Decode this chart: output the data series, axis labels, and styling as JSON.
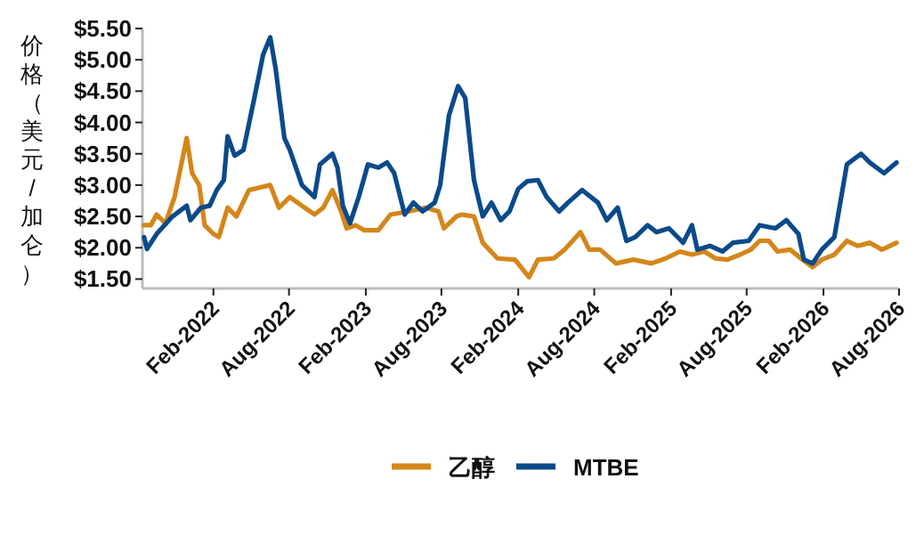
{
  "chart_data": {
    "type": "line",
    "ylabel": "价格（美元/加仑）",
    "legend": "bottom",
    "xlim": [
      "2021-08-15",
      "2026-08-01"
    ],
    "xticks": [
      {
        "value": "2022-02-01",
        "label": "Feb-2022"
      },
      {
        "value": "2022-08-01",
        "label": "Aug-2022"
      },
      {
        "value": "2023-02-01",
        "label": "Feb-2023"
      },
      {
        "value": "2023-08-01",
        "label": "Aug-2023"
      },
      {
        "value": "2024-02-01",
        "label": "Feb-2024"
      },
      {
        "value": "2024-08-01",
        "label": "Aug-2024"
      },
      {
        "value": "2025-02-01",
        "label": "Feb-2025"
      },
      {
        "value": "2025-08-01",
        "label": "Aug-2025"
      },
      {
        "value": "2026-02-01",
        "label": "Feb-2026"
      },
      {
        "value": "2026-08-01",
        "label": "Aug-2026"
      }
    ],
    "ylim": [
      1.35,
      5.5
    ],
    "yticks": [
      {
        "value": 1.5,
        "label": "$1.50"
      },
      {
        "value": 2,
        "label": "$2.00"
      },
      {
        "value": 2.5,
        "label": "$2.50"
      },
      {
        "value": 3,
        "label": "$3.00"
      },
      {
        "value": 3.5,
        "label": "$3.50"
      },
      {
        "value": 4,
        "label": "$4.00"
      },
      {
        "value": 4.5,
        "label": "$4.50"
      },
      {
        "value": 5,
        "label": "$5.00"
      },
      {
        "value": 5.5,
        "label": "$5.50"
      }
    ],
    "series": [
      {
        "name": "乙醇",
        "color": "#d4861a",
        "x": [
          "2021-08-19",
          "2021-09-04",
          "2021-09-18",
          "2021-10-09",
          "2021-10-31",
          "2021-11-17",
          "2021-11-29",
          "2021-12-12",
          "2021-12-29",
          "2022-01-11",
          "2022-02-01",
          "2022-02-14",
          "2022-03-07",
          "2022-03-28",
          "2022-04-27",
          "2022-06-17",
          "2022-07-08",
          "2022-08-03",
          "2022-09-01",
          "2022-10-01",
          "2022-10-22",
          "2022-11-13",
          "2022-12-04",
          "2022-12-17",
          "2023-01-07",
          "2023-01-28",
          "2023-03-03",
          "2023-04-01",
          "2023-05-14",
          "2023-06-25",
          "2023-07-25",
          "2023-08-07",
          "2023-09-06",
          "2023-09-19",
          "2023-10-18",
          "2023-11-08",
          "2023-12-13",
          "2024-01-24",
          "2024-02-27",
          "2024-03-19",
          "2024-04-26",
          "2024-05-22",
          "2024-06-29",
          "2024-07-20",
          "2024-08-15",
          "2024-09-22",
          "2024-11-03",
          "2024-12-16",
          "2025-01-19",
          "2025-02-22",
          "2025-03-23",
          "2025-04-22",
          "2025-05-18",
          "2025-06-16",
          "2025-07-16",
          "2025-08-11",
          "2025-09-01",
          "2025-09-23",
          "2025-10-14",
          "2025-11-13",
          "2025-12-13",
          "2026-01-06",
          "2026-01-28",
          "2026-02-27",
          "2026-03-29",
          "2026-04-24",
          "2026-05-23",
          "2026-06-21",
          "2026-07-26"
        ],
        "values": [
          2.36,
          2.36,
          2.53,
          2.39,
          2.81,
          3.36,
          3.75,
          3.19,
          3.0,
          2.36,
          2.22,
          2.17,
          2.64,
          2.5,
          2.92,
          3.0,
          2.64,
          2.81,
          2.67,
          2.53,
          2.64,
          2.92,
          2.58,
          2.31,
          2.36,
          2.28,
          2.28,
          2.53,
          2.58,
          2.64,
          2.58,
          2.31,
          2.5,
          2.53,
          2.5,
          2.08,
          1.83,
          1.81,
          1.53,
          1.81,
          1.83,
          1.97,
          2.25,
          1.97,
          1.97,
          1.75,
          1.81,
          1.75,
          1.83,
          1.94,
          1.89,
          1.94,
          1.83,
          1.81,
          1.89,
          1.97,
          2.11,
          2.11,
          1.94,
          1.97,
          1.81,
          1.69,
          1.81,
          1.89,
          2.11,
          2.03,
          2.08,
          1.97,
          2.08
        ]
      },
      {
        "name": "MTBE",
        "color": "#0b4a8a",
        "x": [
          "2021-08-19",
          "2021-08-26",
          "2021-09-18",
          "2021-10-26",
          "2021-11-29",
          "2021-12-08",
          "2022-01-02",
          "2022-01-23",
          "2022-02-09",
          "2022-02-26",
          "2022-03-07",
          "2022-03-24",
          "2022-04-14",
          "2022-05-10",
          "2022-05-31",
          "2022-06-17",
          "2022-06-30",
          "2022-07-21",
          "2022-08-03",
          "2022-09-01",
          "2022-10-01",
          "2022-10-14",
          "2022-11-13",
          "2022-11-25",
          "2022-12-08",
          "2022-12-25",
          "2023-01-15",
          "2023-02-06",
          "2023-03-03",
          "2023-03-24",
          "2023-04-10",
          "2023-05-05",
          "2023-05-26",
          "2023-06-17",
          "2023-07-16",
          "2023-07-29",
          "2023-08-19",
          "2023-09-10",
          "2023-09-27",
          "2023-10-18",
          "2023-11-08",
          "2023-11-29",
          "2023-12-21",
          "2024-01-11",
          "2024-02-01",
          "2024-02-22",
          "2024-03-19",
          "2024-04-09",
          "2024-05-09",
          "2024-05-30",
          "2024-07-03",
          "2024-08-10",
          "2024-08-31",
          "2024-09-26",
          "2024-10-17",
          "2024-11-07",
          "2024-12-07",
          "2024-12-28",
          "2025-01-27",
          "2025-03-02",
          "2025-03-23",
          "2025-04-05",
          "2025-05-05",
          "2025-06-04",
          "2025-06-29",
          "2025-08-06",
          "2025-09-01",
          "2025-10-09",
          "2025-11-04",
          "2025-12-03",
          "2025-12-16",
          "2026-01-06",
          "2026-01-28",
          "2026-02-27",
          "2026-03-29",
          "2026-05-02",
          "2026-05-23",
          "2026-06-26",
          "2026-07-26"
        ],
        "values": [
          2.17,
          1.98,
          2.22,
          2.5,
          2.67,
          2.44,
          2.64,
          2.67,
          2.92,
          3.08,
          3.78,
          3.47,
          3.56,
          4.39,
          5.08,
          5.36,
          4.86,
          3.75,
          3.56,
          3.0,
          2.81,
          3.33,
          3.5,
          3.28,
          2.67,
          2.39,
          2.81,
          3.33,
          3.28,
          3.36,
          3.19,
          2.53,
          2.72,
          2.58,
          2.72,
          3.0,
          4.11,
          4.58,
          4.39,
          3.08,
          2.5,
          2.72,
          2.44,
          2.58,
          2.94,
          3.06,
          3.08,
          2.81,
          2.58,
          2.72,
          2.92,
          2.72,
          2.44,
          2.64,
          2.11,
          2.17,
          2.36,
          2.25,
          2.31,
          2.08,
          2.36,
          1.97,
          2.03,
          1.94,
          2.08,
          2.11,
          2.36,
          2.31,
          2.44,
          2.22,
          1.81,
          1.75,
          1.97,
          2.17,
          3.33,
          3.5,
          3.36,
          3.19,
          3.36
        ]
      }
    ]
  }
}
